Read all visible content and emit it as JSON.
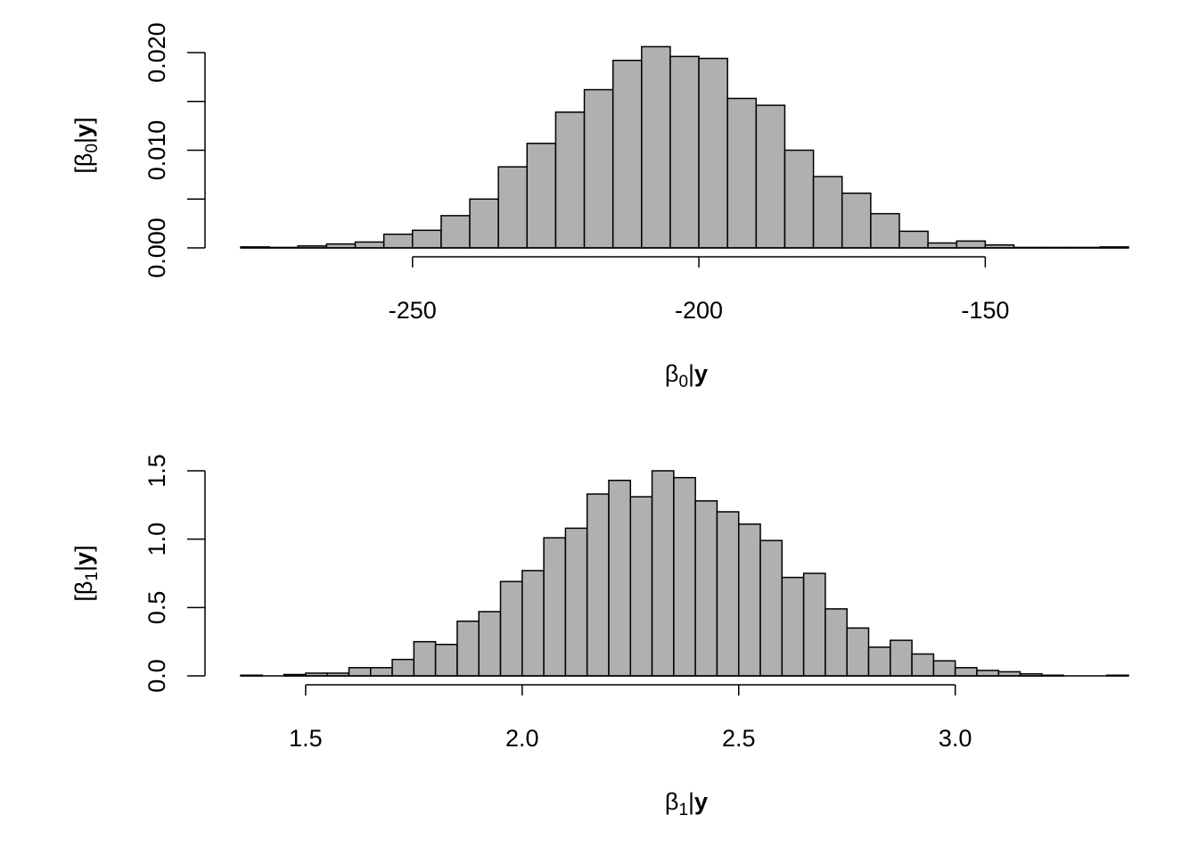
{
  "chart_data": [
    {
      "type": "bar",
      "xlabel_main": "β",
      "xlabel_sub": "0",
      "xlabel_bar": "|",
      "xlabel_bold": "y",
      "ylabel_open": "[β",
      "ylabel_sub": "0",
      "ylabel_bar": "|",
      "ylabel_bold": "y",
      "ylabel_close": "]",
      "x_ticks": [
        -250,
        -200,
        -150
      ],
      "x_tick_labels": [
        "-250",
        "-200",
        "-150"
      ],
      "y_ticks": [
        0,
        0.005,
        0.01,
        0.015,
        0.02
      ],
      "y_tick_labels": [
        "0.000",
        "",
        "0.010",
        "",
        "0.020"
      ],
      "bin_start": -280,
      "bin_width": 5,
      "values": [
        0.0001,
        5e-05,
        0.0002,
        0.0004,
        0.0006,
        0.0014,
        0.0018,
        0.0033,
        0.005,
        0.0083,
        0.0107,
        0.0139,
        0.0162,
        0.0192,
        0.0206,
        0.0196,
        0.0194,
        0.0153,
        0.0146,
        0.01,
        0.0073,
        0.0056,
        0.0035,
        0.0017,
        0.0005,
        0.0007,
        0.0003,
        5e-05,
        5e-05,
        5e-05,
        0.0001
      ],
      "xlim": [
        -280,
        -125
      ],
      "ylim": [
        0,
        0.021
      ]
    },
    {
      "type": "bar",
      "xlabel_main": "β",
      "xlabel_sub": "1",
      "xlabel_bar": "|",
      "xlabel_bold": "y",
      "ylabel_open": "[β",
      "ylabel_sub": "1",
      "ylabel_bar": "|",
      "ylabel_bold": "y",
      "ylabel_close": "]",
      "x_ticks": [
        1.5,
        2.0,
        2.5,
        3.0
      ],
      "x_tick_labels": [
        "1.5",
        "2.0",
        "2.5",
        "3.0"
      ],
      "y_ticks": [
        0,
        0.5,
        1.0,
        1.5
      ],
      "y_tick_labels": [
        "0.0",
        "0.5",
        "1.0",
        "1.5"
      ],
      "bin_start": 1.35,
      "bin_width": 0.05,
      "values": [
        0.005,
        0.0,
        0.01,
        0.02,
        0.02,
        0.06,
        0.06,
        0.12,
        0.25,
        0.23,
        0.4,
        0.47,
        0.69,
        0.77,
        1.01,
        1.08,
        1.33,
        1.43,
        1.31,
        1.5,
        1.45,
        1.28,
        1.2,
        1.11,
        0.99,
        0.72,
        0.75,
        0.49,
        0.35,
        0.21,
        0.26,
        0.16,
        0.11,
        0.06,
        0.04,
        0.03,
        0.015,
        0.005,
        0.0,
        0.0,
        0.005
      ],
      "xlim": [
        1.35,
        3.4
      ],
      "ylim": [
        0,
        1.5
      ]
    }
  ]
}
